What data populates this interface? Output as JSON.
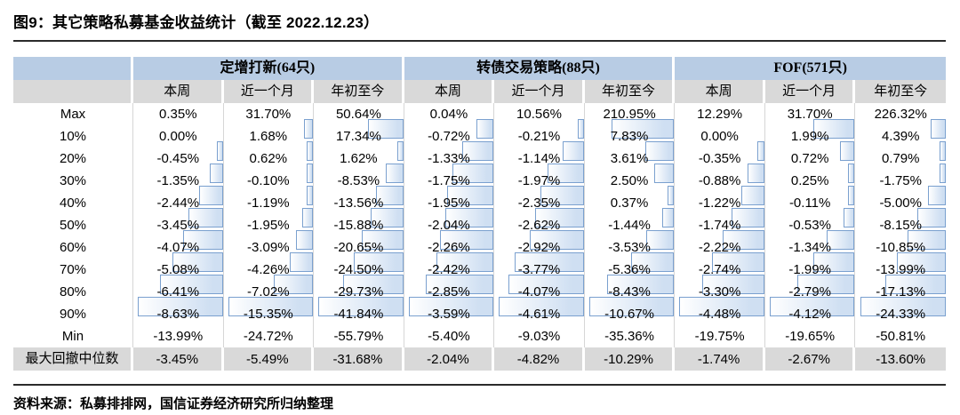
{
  "title": "图9：其它策略私募基金收益统计（截至 2022.12.23）",
  "source_note": "资料来源：私募排排网，国信证券经济研究所归纳整理",
  "colors": {
    "header_blue": "#b8cce4",
    "header_gray": "#d9d9d9",
    "grid_line": "#d6d6d6",
    "bar_border": "#7aa0cf",
    "bar_fill": "#cfdff2",
    "rule_dark": "#2b2b2b"
  },
  "table": {
    "groups": [
      {
        "label": "定增打新(64只)",
        "cols": [
          "本周",
          "近一个月",
          "年初至今"
        ]
      },
      {
        "label": "转债交易策略(88只)",
        "cols": [
          "本周",
          "近一个月",
          "年初至今"
        ]
      },
      {
        "label": "FOF(571只)",
        "cols": [
          "本周",
          "近一个月",
          "年初至今"
        ]
      }
    ],
    "rows": [
      {
        "label": "Max",
        "bars": false,
        "shaded": false,
        "values": [
          "0.35%",
          "31.70%",
          "50.64%",
          "0.04%",
          "10.56%",
          "210.95%",
          "12.29%",
          "31.70%",
          "226.32%"
        ]
      },
      {
        "label": "10%",
        "bars": true,
        "shaded": false,
        "values": [
          "0.00%",
          "1.68%",
          "17.34%",
          "-0.72%",
          "-0.21%",
          "7.83%",
          "0.00%",
          "1.99%",
          "4.39%"
        ]
      },
      {
        "label": "20%",
        "bars": true,
        "shaded": false,
        "values": [
          "-0.45%",
          "0.62%",
          "1.62%",
          "-1.33%",
          "-1.14%",
          "3.61%",
          "-0.35%",
          "0.72%",
          "0.79%"
        ]
      },
      {
        "label": "30%",
        "bars": true,
        "shaded": false,
        "values": [
          "-1.35%",
          "-0.10%",
          "-8.53%",
          "-1.75%",
          "-1.97%",
          "2.50%",
          "-0.88%",
          "0.25%",
          "-1.75%"
        ]
      },
      {
        "label": "40%",
        "bars": true,
        "shaded": false,
        "values": [
          "-2.44%",
          "-1.19%",
          "-13.56%",
          "-1.95%",
          "-2.35%",
          "0.37%",
          "-1.22%",
          "-0.11%",
          "-5.00%"
        ]
      },
      {
        "label": "50%",
        "bars": true,
        "shaded": false,
        "values": [
          "-3.45%",
          "-1.95%",
          "-15.88%",
          "-2.04%",
          "-2.62%",
          "-1.44%",
          "-1.74%",
          "-0.53%",
          "-8.15%"
        ]
      },
      {
        "label": "60%",
        "bars": true,
        "shaded": false,
        "values": [
          "-4.07%",
          "-3.09%",
          "-20.65%",
          "-2.26%",
          "-2.92%",
          "-3.53%",
          "-2.22%",
          "-1.34%",
          "-10.85%"
        ]
      },
      {
        "label": "70%",
        "bars": true,
        "shaded": false,
        "values": [
          "-5.08%",
          "-4.26%",
          "-24.50%",
          "-2.42%",
          "-3.77%",
          "-5.36%",
          "-2.74%",
          "-1.99%",
          "-13.99%"
        ]
      },
      {
        "label": "80%",
        "bars": true,
        "shaded": false,
        "values": [
          "-6.41%",
          "-7.02%",
          "-29.73%",
          "-2.85%",
          "-4.07%",
          "-8.43%",
          "-3.30%",
          "-2.79%",
          "-17.13%"
        ]
      },
      {
        "label": "90%",
        "bars": true,
        "shaded": false,
        "values": [
          "-8.63%",
          "-15.35%",
          "-41.84%",
          "-3.59%",
          "-4.61%",
          "-10.67%",
          "-4.48%",
          "-4.12%",
          "-24.33%"
        ]
      },
      {
        "label": "Min",
        "bars": false,
        "shaded": false,
        "values": [
          "-13.99%",
          "-24.72%",
          "-55.79%",
          "-5.40%",
          "-9.03%",
          "-35.36%",
          "-19.75%",
          "-19.65%",
          "-50.81%"
        ]
      },
      {
        "label": "最大回撤中位数",
        "bars": false,
        "shaded": true,
        "values": [
          "-3.45%",
          "-5.49%",
          "-31.68%",
          "-2.04%",
          "-4.82%",
          "-10.29%",
          "-1.74%",
          "-2.67%",
          "-13.60%"
        ]
      }
    ]
  }
}
